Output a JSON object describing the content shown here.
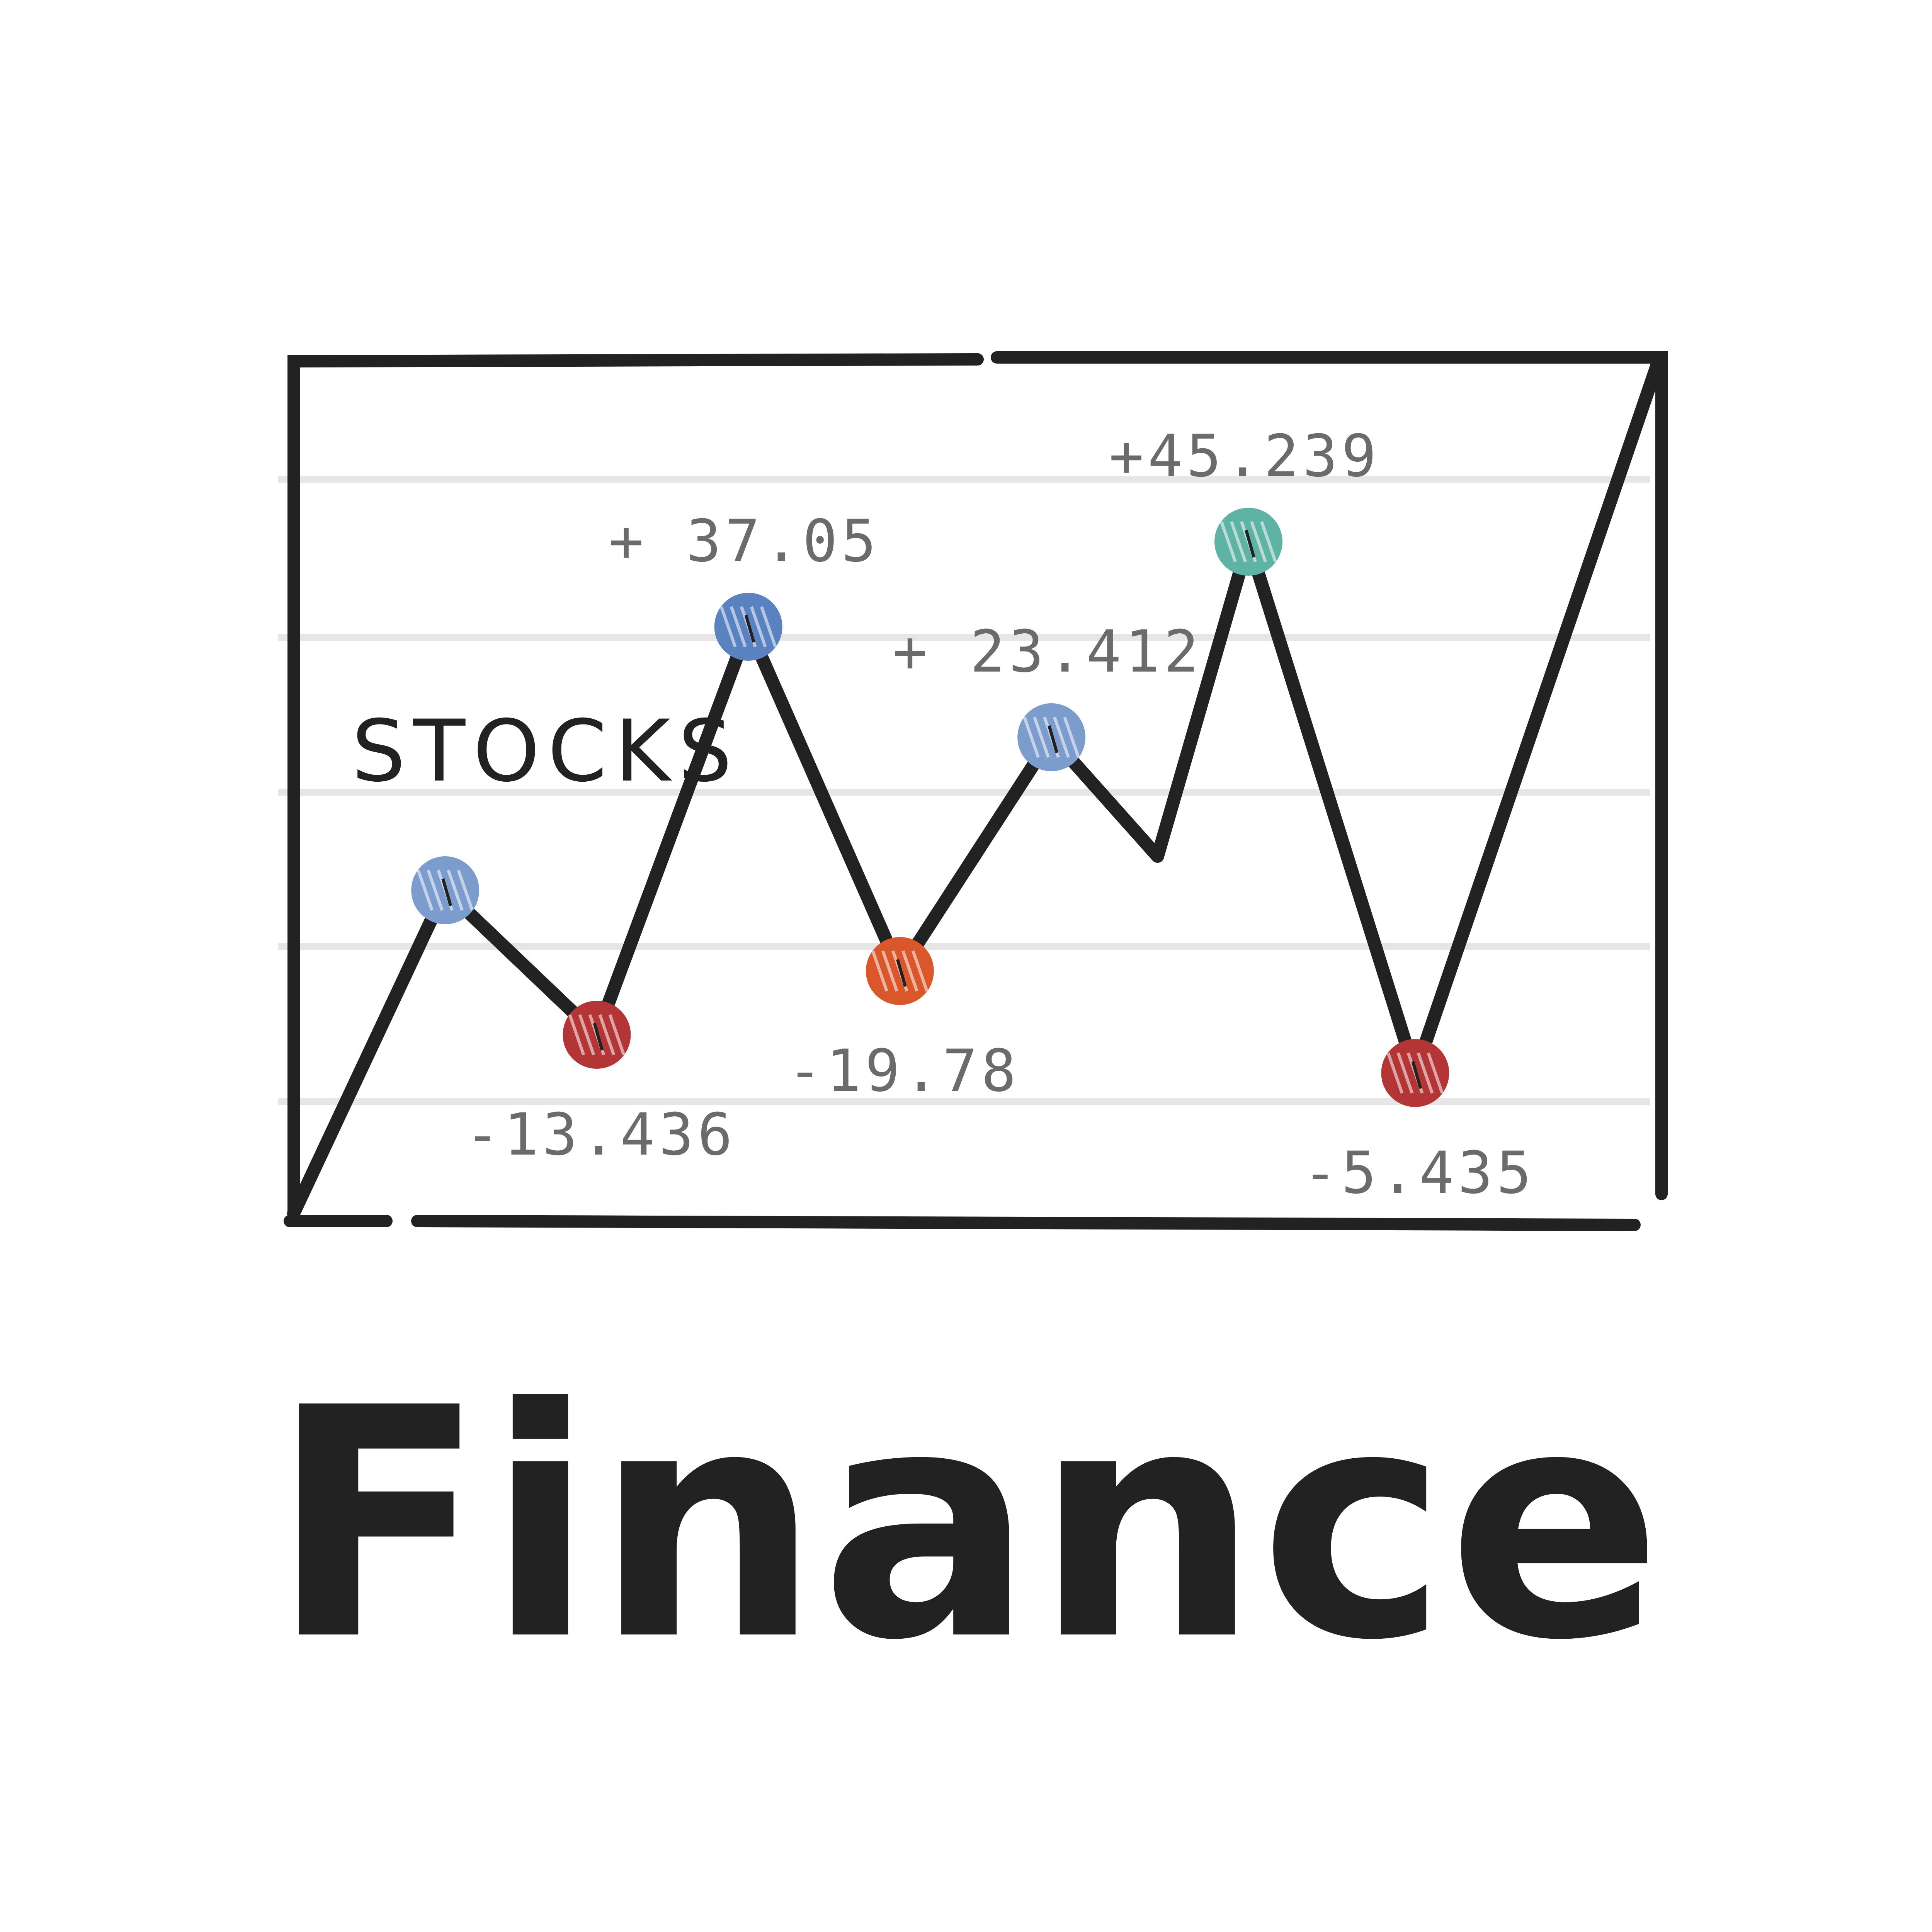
{
  "title": "Finance",
  "chart_data": {
    "type": "line",
    "series_label": "STOCKS",
    "points": [
      {
        "x": 0,
        "y": 0
      },
      {
        "x": 1,
        "y": 76,
        "label": "",
        "color": "#7b9ccc"
      },
      {
        "x": 2,
        "y": 42,
        "label": "-13.436",
        "color": "#b33535"
      },
      {
        "x": 3,
        "y": 138,
        "label": "+ 37.05",
        "color": "#5b82c0"
      },
      {
        "x": 4,
        "y": 57,
        "label": "-19.78",
        "color": "#d9572a"
      },
      {
        "x": 5,
        "y": 112,
        "label": "+ 23.412",
        "color": "#7b9ccc"
      },
      {
        "x": 5.7,
        "y": 84
      },
      {
        "x": 6.3,
        "y": 158,
        "label": "+45.239",
        "color": "#5fb3a5"
      },
      {
        "x": 7.4,
        "y": 33,
        "label": "-5.435",
        "color": "#b33535"
      },
      {
        "x": 9.0,
        "y": 200
      }
    ],
    "ylim": [
      0,
      200
    ],
    "xlim": [
      0,
      9.0
    ],
    "grid": true
  },
  "colors": {
    "ink": "#222222",
    "grid": "#e6e6e6",
    "label": "#6b6b6b"
  }
}
